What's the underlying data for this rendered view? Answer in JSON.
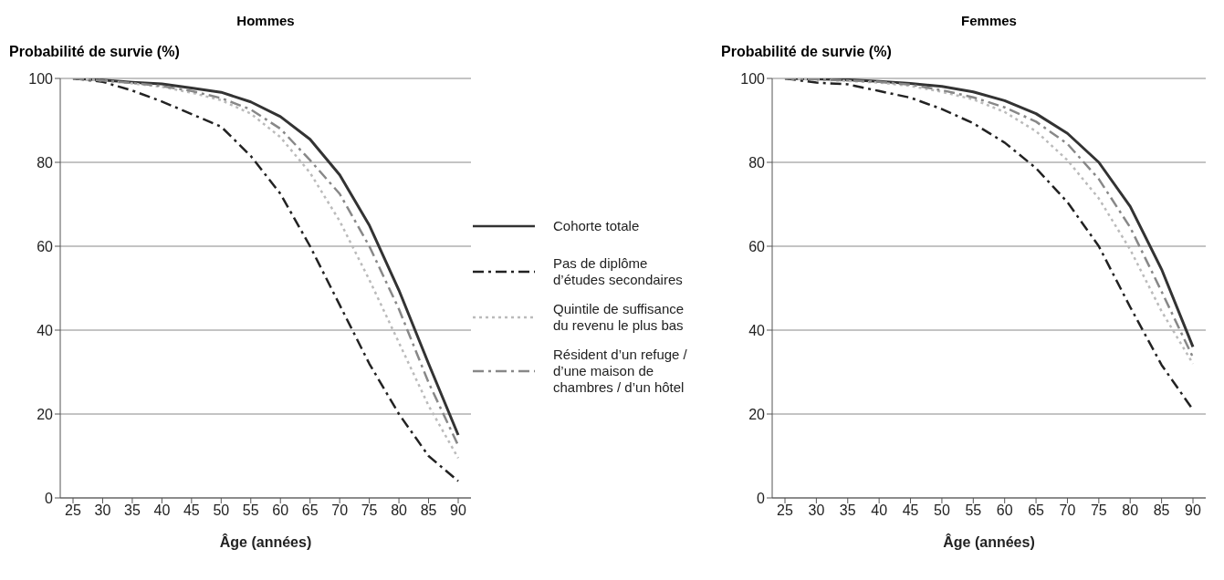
{
  "chart_data": [
    {
      "type": "line",
      "title": "Hommes",
      "xlabel": "Âge (années)",
      "ylabel": "Probabilité de survie (%)",
      "categories": [
        "25",
        "30",
        "35",
        "40",
        "45",
        "50",
        "55",
        "60",
        "65",
        "70",
        "75",
        "80",
        "85",
        "90"
      ],
      "ylim": [
        0,
        100
      ],
      "yticks": [
        0,
        20,
        40,
        60,
        80,
        100
      ],
      "grid": "y",
      "legend": "right",
      "marker": "none",
      "series": [
        {
          "name": "Cohorte totale",
          "color": "#333333",
          "line_style": "solid",
          "values": [
            100,
            99.6,
            99.1,
            98.7,
            97.7,
            96.7,
            94.4,
            90.9,
            85.5,
            77,
            65,
            49.5,
            32,
            15
          ]
        },
        {
          "name": "Pas de diplôme d’études secondaires",
          "color": "#222222",
          "line_style": "dashed",
          "values": [
            100,
            99.2,
            97.1,
            94.5,
            91.5,
            88.5,
            81.5,
            72.5,
            60,
            46,
            32,
            20,
            10,
            4
          ]
        },
        {
          "name": "Quintile de suffisance du revenu le plus bas",
          "color": "#bbbbbb",
          "line_style": "dotted",
          "values": [
            100,
            99.5,
            98.8,
            98,
            96.6,
            94.8,
            91.6,
            86,
            77.5,
            66,
            52,
            37,
            22,
            9.5
          ]
        },
        {
          "name": "Résident d’un refuge / d’une maison de chambres / d’un hôtel",
          "color": "#888888",
          "line_style": "dashed",
          "values": [
            100,
            99.5,
            98.9,
            98.2,
            97,
            95.3,
            92.6,
            88,
            80.5,
            72.5,
            60,
            45,
            27.5,
            12.5
          ]
        }
      ]
    },
    {
      "type": "line",
      "title": "Femmes",
      "xlabel": "Âge (années)",
      "ylabel": "Probabilité de survie (%)",
      "categories": [
        "25",
        "30",
        "35",
        "40",
        "45",
        "50",
        "55",
        "60",
        "65",
        "70",
        "75",
        "80",
        "85",
        "90"
      ],
      "ylim": [
        0,
        100
      ],
      "yticks": [
        0,
        20,
        40,
        60,
        80,
        100
      ],
      "grid": "y",
      "legend": false,
      "marker": "none",
      "series": [
        {
          "color": "#333333",
          "line_style": "solid",
          "values": [
            100,
            99.9,
            99.7,
            99.3,
            98.8,
            98.1,
            96.8,
            94.7,
            91.6,
            86.9,
            80,
            69.5,
            54.5,
            36
          ]
        },
        {
          "color": "#222222",
          "line_style": "dashed",
          "values": [
            100,
            99,
            98.6,
            97,
            95.4,
            92.7,
            89.3,
            84.7,
            78.6,
            70.5,
            60,
            45.5,
            31.7,
            21
          ]
        },
        {
          "color": "#bbbbbb",
          "line_style": "dotted",
          "values": [
            100,
            99.7,
            99.4,
            99,
            98.2,
            96.8,
            95,
            92,
            87.4,
            80.5,
            71.4,
            59.2,
            44.5,
            32
          ]
        },
        {
          "color": "#888888",
          "line_style": "dashed",
          "values": [
            100,
            99.8,
            99.5,
            99.2,
            98.5,
            97.2,
            95.5,
            93.1,
            89.7,
            84.4,
            76,
            64.5,
            49.2,
            33.5
          ]
        }
      ]
    }
  ]
}
